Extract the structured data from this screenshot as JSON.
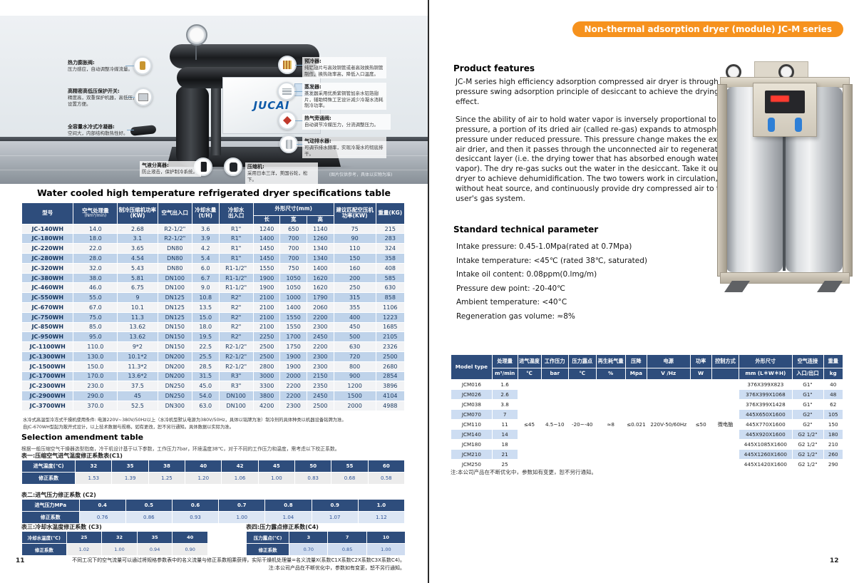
{
  "colors": {
    "accent_orange": "#F6921E",
    "header_navy": "#2E4D7C",
    "row_blue": "#BFD3EA",
    "row_light": "#F2F3F5"
  },
  "page_left": {
    "page_number": "11",
    "photo": {
      "brand": "JUCAI",
      "caption": "(图片仅供参考，具体以实物为准)",
      "callouts_left": [
        {
          "title": "热力膨胀阀:",
          "desc": "压力感应，自动调整冷媒流量。"
        },
        {
          "title": "高精密高低压保护开关:",
          "desc": "精度高，双重保护机器，高低压，设置方便。"
        },
        {
          "title": "全容量水冷式冷凝器:",
          "desc": "空间大，内部结构散热性好。"
        }
      ],
      "callouts_right": [
        {
          "title": "预冷器:",
          "desc": "纯铝翅片与高效铜管或者高效换热铜管制作，换热效率高，降低入口温度。"
        },
        {
          "title": "蒸发器:",
          "desc": "蒸发器采用优质紫铜管加亲水铝箔翅片，辅助特殊工艺设计减少冷凝水消耗制冷功率。"
        },
        {
          "title": "热气旁通阀:",
          "desc": "自动调节冷媒压力，分流调整压力。"
        },
        {
          "title": "气动排水器:",
          "desc": "可调节排水频率，实现冷凝水的彻底排干。"
        }
      ],
      "callouts_bottom": [
        {
          "title": "气液分离器:",
          "desc": "防止液击，保护制冷系统。"
        },
        {
          "title": "压缩机:",
          "desc": "采用日本三洋，美国谷轮，松下。"
        }
      ]
    },
    "specs_title": "Water cooled high temperature refrigerated dryer specifications table",
    "specs_table": {
      "col_model": "型号",
      "col_capacity": "空气处理量",
      "col_capacity_unit": "(Nm³/min)",
      "col_comp_power": "制冷压缩机功率(KW)",
      "col_air_io": "空气出入口",
      "col_water_flow": "冷却水量(t/H)",
      "col_water_io_1": "冷却水",
      "col_water_io_2": "出入口",
      "col_dims": "外形尺寸(mm)",
      "col_len": "长",
      "col_wid": "宽",
      "col_hgt": "高",
      "col_match_power": "建议匹配空压机功率(KW)",
      "col_weight": "重量(KG)",
      "rows": [
        [
          "JC-140WH",
          "14.0",
          "2.68",
          "R2-1/2\"",
          "3.6",
          "R1\"",
          "1240",
          "650",
          "1140",
          "75",
          "215"
        ],
        [
          "JC-180WH",
          "18.0",
          "3.1",
          "R2-1/2\"",
          "3.9",
          "R1\"",
          "1400",
          "700",
          "1260",
          "90",
          "283"
        ],
        [
          "JC-220WH",
          "22.0",
          "3.65",
          "DN80",
          "4.2",
          "R1\"",
          "1450",
          "700",
          "1340",
          "110",
          "324"
        ],
        [
          "JC-280WH",
          "28.0",
          "4.54",
          "DN80",
          "5.4",
          "R1\"",
          "1450",
          "700",
          "1340",
          "150",
          "358"
        ],
        [
          "JC-320WH",
          "32.0",
          "5.43",
          "DN80",
          "6.0",
          "R1-1/2\"",
          "1550",
          "750",
          "1400",
          "160",
          "408"
        ],
        [
          "JC-380WH",
          "38.0",
          "5.81",
          "DN100",
          "6.7",
          "R1-1/2\"",
          "1900",
          "1050",
          "1620",
          "200",
          "585"
        ],
        [
          "JC-460WH",
          "46.0",
          "6.75",
          "DN100",
          "9.0",
          "R1-1/2\"",
          "1900",
          "1050",
          "1620",
          "250",
          "630"
        ],
        [
          "JC-550WH",
          "55.0",
          "9",
          "DN125",
          "10.8",
          "R2\"",
          "2100",
          "1000",
          "1790",
          "315",
          "858"
        ],
        [
          "JC-670WH",
          "67.0",
          "10.1",
          "DN125",
          "13.5",
          "R2\"",
          "2100",
          "1400",
          "2060",
          "355",
          "1106"
        ],
        [
          "JC-750WH",
          "75.0",
          "11.3",
          "DN125",
          "15.0",
          "R2\"",
          "2100",
          "1550",
          "2200",
          "400",
          "1223"
        ],
        [
          "JC-850WH",
          "85.0",
          "13.62",
          "DN150",
          "18.0",
          "R2\"",
          "2100",
          "1550",
          "2300",
          "450",
          "1685"
        ],
        [
          "JC-950WH",
          "95.0",
          "13.62",
          "DN150",
          "19.5",
          "R2\"",
          "2250",
          "1700",
          "2450",
          "500",
          "2105"
        ],
        [
          "JC-1100WH",
          "110.0",
          "9*2",
          "DN150",
          "22.5",
          "R2-1/2\"",
          "2500",
          "1750",
          "2200",
          "630",
          "2326"
        ],
        [
          "JC-1300WH",
          "130.0",
          "10.1*2",
          "DN200",
          "25.5",
          "R2-1/2\"",
          "2500",
          "1900",
          "2300",
          "720",
          "2500"
        ],
        [
          "JC-1500WH",
          "150.0",
          "11.3*2",
          "DN200",
          "28.5",
          "R2-1/2\"",
          "2800",
          "1900",
          "2300",
          "800",
          "2680"
        ],
        [
          "JC-1700WH",
          "170.0",
          "13.6*2",
          "DN200",
          "31.5",
          "R3\"",
          "3000",
          "2000",
          "2150",
          "900",
          "2854"
        ],
        [
          "JC-2300WH",
          "230.0",
          "37.5",
          "DN250",
          "45.0",
          "R3\"",
          "3300",
          "2200",
          "2350",
          "1200",
          "3896"
        ],
        [
          "JC-2900WH",
          "290.0",
          "45",
          "DN250",
          "54.0",
          "DN100",
          "3800",
          "2200",
          "2450",
          "1500",
          "4104"
        ],
        [
          "JC-3700WH",
          "370.0",
          "52.5",
          "DN300",
          "63.0",
          "DN100",
          "4200",
          "2300",
          "2500",
          "2000",
          "4988"
        ]
      ]
    },
    "notes": [
      "水冷式高温型冷冻式干燥机使用条件: 电源220V~380V/50Hz以上（水冷机型默认电源为380V/50Hz，具体以铭牌为准）制冷剂的具体种类以机器设备铭牌为准。",
      "自JC-670WH型起为敞开式设计，以上技术数据与规格，如有更改，恕不另行通知。具体数据以实际为准。"
    ],
    "amendment": {
      "title": "Selection amendment table",
      "note": "根据一般压缩空气干燥器选型指南，冷干机设计基于以下参数，工作压力7bar，环境温度38℃，对于不同的工作压力和温度，需考虑以下校正系数。",
      "t1": {
        "label": "表一:压缩空气进气温度修正系数表(C1)",
        "rows": [
          [
            {
              "t": "进气温度(℃)",
              "cls": "hd"
            },
            {
              "t": "32",
              "cls": "hd"
            },
            {
              "t": "35",
              "cls": "hd"
            },
            {
              "t": "38",
              "cls": "hd"
            },
            {
              "t": "40",
              "cls": "hd"
            },
            {
              "t": "42",
              "cls": "hd"
            },
            {
              "t": "45",
              "cls": "hd"
            },
            {
              "t": "50",
              "cls": "hd"
            },
            {
              "t": "55",
              "cls": "hd"
            },
            {
              "t": "60",
              "cls": "hd"
            }
          ],
          [
            {
              "t": "修正系数",
              "cls": "hd"
            },
            "1.53",
            "1.39",
            "1.25",
            "1.20",
            "1.06",
            "1.00",
            "0.83",
            "0.68",
            "0.58"
          ]
        ]
      },
      "t2": {
        "label": "表二:进气压力修正系数 (C2)",
        "rows": [
          [
            {
              "t": "进气压力MPa",
              "cls": "hd"
            },
            {
              "t": "0.4",
              "cls": "hd"
            },
            {
              "t": "0.5",
              "cls": "hd"
            },
            {
              "t": "0.6",
              "cls": "hd"
            },
            {
              "t": "0.7",
              "cls": "hd"
            },
            {
              "t": "0.8",
              "cls": "hd"
            },
            {
              "t": "0.9",
              "cls": "hd"
            },
            {
              "t": "1.0",
              "cls": "hd"
            }
          ],
          [
            {
              "t": "修正系数",
              "cls": "hd"
            },
            "0.76",
            "0.86",
            "0.93",
            "1.00",
            "1.04",
            "1.07",
            "1.12"
          ]
        ]
      },
      "t3": {
        "label": "表三:冷却水温度修正系数 (C3)",
        "rows": [
          [
            {
              "t": "冷却水温度(℃)",
              "cls": "hd"
            },
            {
              "t": "25",
              "cls": "hd"
            },
            {
              "t": "32",
              "cls": "hd"
            },
            {
              "t": "35",
              "cls": "hd"
            },
            {
              "t": "40",
              "cls": "hd"
            }
          ],
          [
            {
              "t": "修正系数",
              "cls": "hd"
            },
            "1.02",
            "1.00",
            "0.94",
            "0.90"
          ]
        ]
      },
      "t4": {
        "label": "表四:压力露点修正系数(C4)",
        "rows": [
          [
            {
              "t": "压力露点(℃)",
              "cls": "hd"
            },
            {
              "t": "3",
              "cls": "hd"
            },
            {
              "t": "7",
              "cls": "hd"
            },
            {
              "t": "10",
              "cls": "hd"
            }
          ],
          [
            {
              "t": "修正系数",
              "cls": "hd"
            },
            "0.70",
            "0.85",
            "1.00"
          ]
        ]
      }
    },
    "footer_lines": [
      "不同工况下的空气流量可以通过将规格参数表中的名义流量与修正系数相乘获得，实际干燥机处理量=名义流量X(系数C1X系数C2X系数C3X系数C4)。",
      "注:本公司产品在不断优化中，参数如有变更，恕不另行通知。"
    ]
  },
  "page_right": {
    "page_number": "12",
    "badge": "Non-thermal adsorption dryer (module) JC-M series",
    "features_title": "Product features",
    "features_paragraphs": [
      "JC-M series high efficiency adsorption compressed air dryer is through the pressure swing adsorption principle of desiccant to achieve the drying effect.",
      "Since the ability of air to hold water vapor is inversely proportional to the pressure, a portion of its dried air (called re-gas) expands to atmospheric pressure under reduced pressure. This pressure change makes the expanded air drier, and then it passes through the unconnected air to regenerate the desiccant layer (i.e. the drying tower that has absorbed enough water vapor). The dry re-gas sucks out the water in the desiccant. Take it out of the dryer to achieve dehumidification. The two towers work in circulation, without heat source, and continuously provide dry compressed air to the user's gas system."
    ],
    "params_title": "Standard technical parameter",
    "params": [
      "Intake pressure: 0.45-1.0Mpa(rated at 0.7Mpa)",
      "Intake temperature: <45℃ (rated 38℃, saturated)",
      "Intake oil content: 0.08ppm(0.lmg/m)",
      "Pressure dew point: -20-40℃",
      "Ambient temperature: <40°C",
      "Regeneration gas volume: ≈8%"
    ],
    "model_table": {
      "h_model": "Model type",
      "cols": [
        {
          "name": "处理量",
          "unit": "m³/min"
        },
        {
          "name": "进气温度",
          "unit": "℃"
        },
        {
          "name": "工作压力",
          "unit": "bar"
        },
        {
          "name": "压力露点",
          "unit": "℃"
        },
        {
          "name": "再生耗气量",
          "unit": "%"
        },
        {
          "name": "压降",
          "unit": "Mpa"
        },
        {
          "name": "电源",
          "unit": "V /Hz"
        },
        {
          "name": "功率",
          "unit": "W"
        },
        {
          "name": "控制方式",
          "unit": ""
        },
        {
          "name": "外形尺寸",
          "unit": "mm (L＊W＊H)"
        },
        {
          "name": "空气连接",
          "unit": "入口/出口"
        },
        {
          "name": "重量",
          "unit": "kg"
        }
      ],
      "rows": [
        [
          "JCM016",
          "1.6",
          {
            "t": "≤45",
            "rs": 9,
            "cls": "band"
          },
          {
            "t": "4.5~10",
            "rs": 9,
            "cls": "bandw"
          },
          {
            "t": "-20~-40",
            "rs": 9,
            "cls": "band"
          },
          {
            "t": "≈8",
            "rs": 9,
            "cls": "bandw"
          },
          {
            "t": "≤0.021",
            "rs": 9,
            "cls": "band"
          },
          {
            "t": "220V-50/60Hz",
            "rs": 9,
            "cls": "bandw"
          },
          {
            "t": "≤50",
            "rs": 9,
            "cls": "band"
          },
          {
            "t": "微电脑",
            "rs": 9,
            "cls": "bandw"
          },
          "376X399X823",
          "G1\"",
          "40"
        ],
        [
          "JCM026",
          "2.6",
          "376X399X1068",
          "G1\"",
          "48"
        ],
        [
          "JCM038",
          "3.8",
          "376X399X1428",
          "G1\"",
          "62"
        ],
        [
          "JCM070",
          "7",
          "445X650X1600",
          "G2\"",
          "105"
        ],
        [
          "JCM110",
          "11",
          "445X770X1600",
          "G2\"",
          "150"
        ],
        [
          "JCM140",
          "14",
          "445X920X1600",
          "G2 1/2\"",
          "180"
        ],
        [
          "JCM180",
          "18",
          "445X1085X1600",
          "G2 1/2\"",
          "210"
        ],
        [
          "JCM210",
          "21",
          "445X1260X1600",
          "G2 1/2\"",
          "260"
        ],
        [
          "JCM250",
          "25",
          "445X1420X1600",
          "G2 1/2\"",
          "290"
        ]
      ]
    },
    "table_note": "注:本公司产品在不断优化中，参数如有变更，恕不另行通知。"
  }
}
